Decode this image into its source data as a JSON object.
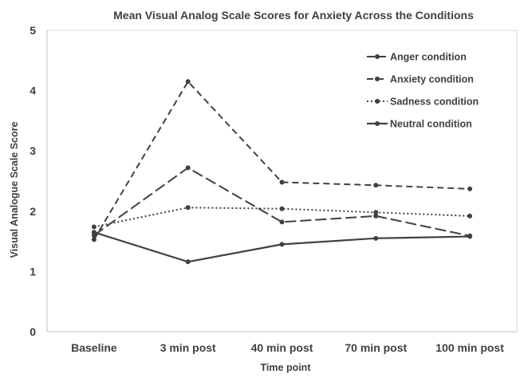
{
  "chart_data": {
    "type": "line",
    "title": "Mean Visual Analog Scale Scores for Anxiety Across the Conditions",
    "xlabel": "Time point",
    "ylabel": "Visual Analogue Scale Score",
    "categories": [
      "Baseline",
      "3 min post",
      "40 min post",
      "70 min post",
      "100 min post"
    ],
    "ylim": [
      0,
      5
    ],
    "yticks": [
      "0",
      "1",
      "2",
      "3",
      "4",
      "5"
    ],
    "grid": false,
    "legend_position": "top-right",
    "line_color": "#404040",
    "series": [
      {
        "name": "Anger condition",
        "style": "long-dash",
        "values": [
          1.6,
          2.72,
          1.82,
          1.92,
          1.59
        ]
      },
      {
        "name": "Anxiety condition",
        "style": "dash",
        "values": [
          1.53,
          4.15,
          2.48,
          2.43,
          2.37
        ]
      },
      {
        "name": "Sadness condition",
        "style": "dot",
        "values": [
          1.74,
          2.06,
          2.04,
          1.98,
          1.92
        ]
      },
      {
        "name": "Neutral condition",
        "style": "solid",
        "values": [
          1.65,
          1.16,
          1.45,
          1.55,
          1.58
        ]
      }
    ]
  }
}
